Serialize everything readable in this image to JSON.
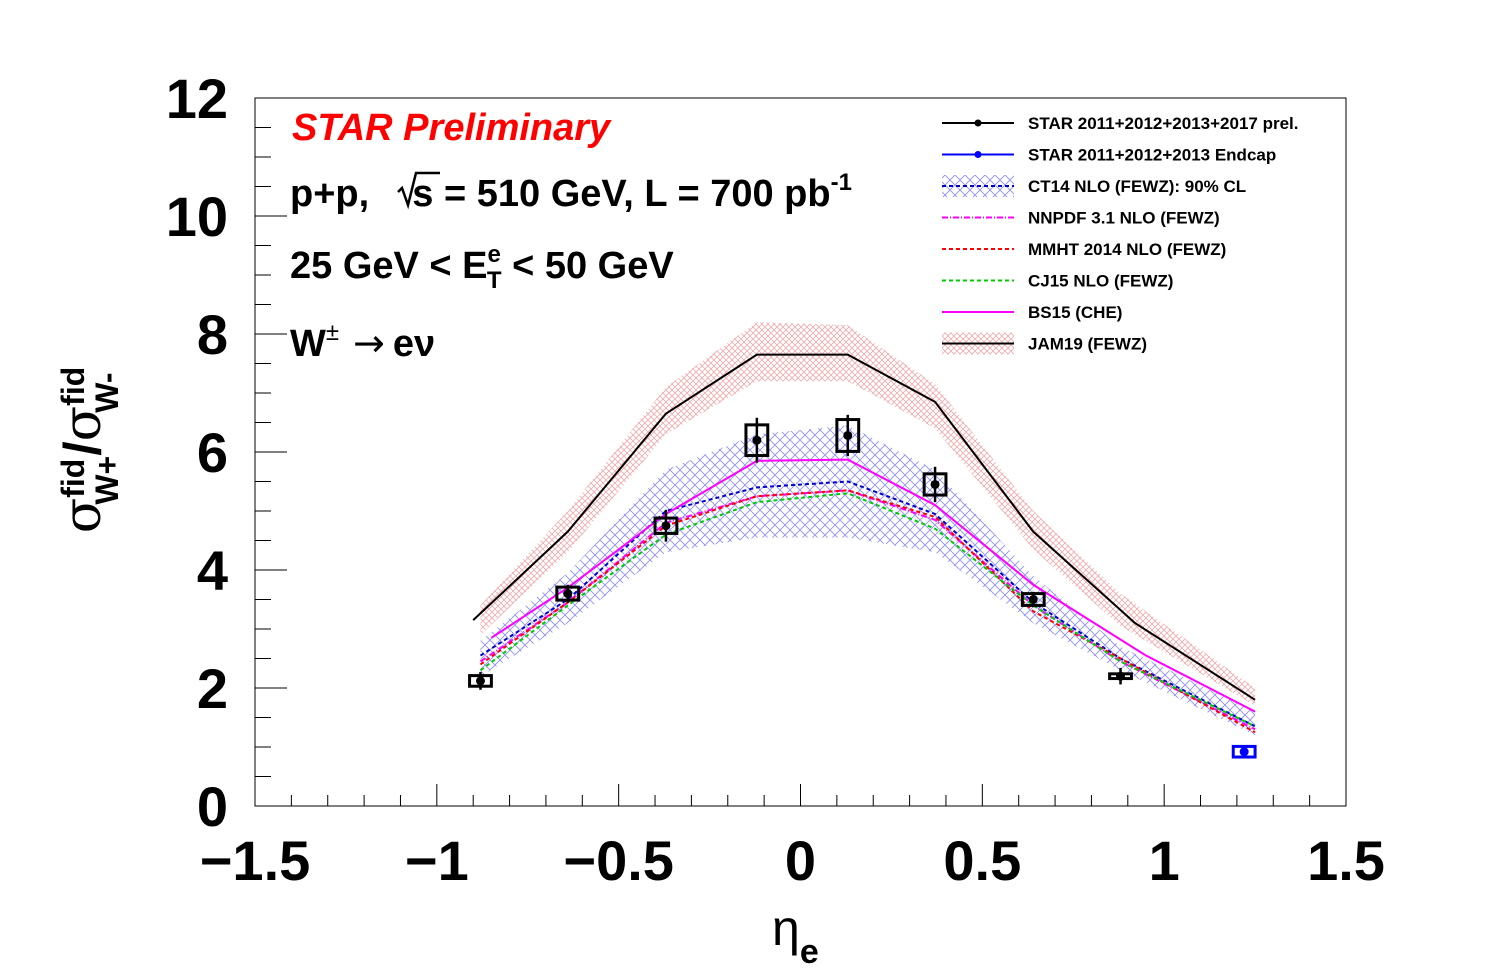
{
  "chart_data": {
    "type": "line",
    "x_axis": {
      "title": "η",
      "title_sub": "e",
      "range": [
        -1.5,
        1.5
      ],
      "ticks": [
        {
          "value": -1.5,
          "label": "−1.5"
        },
        {
          "value": -1,
          "label": "−1"
        },
        {
          "value": -0.5,
          "label": "−0.5"
        },
        {
          "value": 0,
          "label": "0"
        },
        {
          "value": 0.5,
          "label": "0.5"
        },
        {
          "value": 1,
          "label": "1"
        },
        {
          "value": 1.5,
          "label": "1.5"
        }
      ]
    },
    "y_axis": {
      "title_num": "σ",
      "title_num_sup": "fid",
      "title_num_sub": "W+",
      "title_sep": "/",
      "title_den": "σ",
      "title_den_sup": "fid",
      "title_den_sub": "W-",
      "range": [
        0,
        12
      ],
      "ticks": [
        {
          "value": 0,
          "label": "0"
        },
        {
          "value": 2,
          "label": "2"
        },
        {
          "value": 4,
          "label": "4"
        },
        {
          "value": 6,
          "label": "6"
        },
        {
          "value": 8,
          "label": "8"
        },
        {
          "value": 10,
          "label": "10"
        },
        {
          "value": 12,
          "label": "12"
        }
      ]
    },
    "grid": false,
    "legend_position": "top-right",
    "annotations": {
      "preliminary": "STAR Preliminary",
      "collision_pre": "p+p,  ",
      "sqrt_s": "s",
      "collision_post": " = 510 GeV, L = 700 pb",
      "lumi_exp": "-1",
      "et_pre": "25 GeV < E",
      "et_sup": "e",
      "et_sub": "T",
      "et_post": " < 50 GeV",
      "process_w": "W",
      "process_pm": "±",
      "process_arrow": "→",
      "process_final": "eν"
    },
    "data_series": [
      {
        "name": "STAR 2011+2012+2013+2017 prel.",
        "color": "#000000",
        "points": [
          {
            "x": -0.88,
            "y": 2.12,
            "stat": 0.15,
            "sys_half_width": 0.03,
            "sys_half_height": 0.09
          },
          {
            "x": -0.64,
            "y": 3.6,
            "stat": 0.15,
            "sys_half_width": 0.03,
            "sys_half_height": 0.11
          },
          {
            "x": -0.37,
            "y": 4.75,
            "stat": 0.27,
            "sys_half_width": 0.03,
            "sys_half_height": 0.13
          },
          {
            "x": -0.12,
            "y": 6.2,
            "stat": 0.38,
            "sys_half_width": 0.03,
            "sys_half_height": 0.26
          },
          {
            "x": 0.13,
            "y": 6.28,
            "stat": 0.35,
            "sys_half_width": 0.03,
            "sys_half_height": 0.27
          },
          {
            "x": 0.37,
            "y": 5.45,
            "stat": 0.3,
            "sys_half_width": 0.03,
            "sys_half_height": 0.18
          },
          {
            "x": 0.64,
            "y": 3.5,
            "stat": 0.13,
            "sys_half_width": 0.03,
            "sys_half_height": 0.1
          },
          {
            "x": 0.88,
            "y": 2.2,
            "stat": 0.14,
            "sys_half_width": 0.03,
            "sys_half_height": 0.04
          }
        ]
      },
      {
        "name": "STAR 2011+2012+2013 Endcap",
        "color": "#0000ff",
        "points": [
          {
            "x": 1.22,
            "y": 0.92,
            "stat": 0.06,
            "sys_half_width": 0.03,
            "sys_half_height": 0.09
          }
        ]
      }
    ],
    "theory_bands": [
      {
        "name": "CT14 NLO (FEWZ): 90% CL",
        "color": "#6a6aff",
        "x": [
          -0.88,
          -0.64,
          -0.37,
          -0.12,
          0.13,
          0.37,
          0.64,
          0.88,
          1.25
        ],
        "low": [
          2.2,
          3.1,
          4.3,
          4.55,
          4.55,
          4.3,
          3.1,
          2.3,
          1.2
        ],
        "high": [
          2.8,
          3.95,
          5.7,
          6.3,
          6.45,
          5.7,
          3.9,
          2.7,
          1.6
        ]
      },
      {
        "name": "JAM19 (FEWZ)",
        "color": "#e08a8a",
        "x": [
          -0.88,
          -0.64,
          -0.37,
          -0.12,
          0.13,
          0.37,
          0.64,
          0.88,
          1.25
        ],
        "low": [
          2.9,
          4.3,
          6.3,
          7.2,
          7.2,
          6.4,
          4.35,
          3.05,
          1.7
        ],
        "high": [
          3.4,
          5.0,
          7.1,
          8.2,
          8.15,
          7.15,
          5.0,
          3.6,
          2.0
        ]
      }
    ],
    "theory_curves": [
      {
        "name": "CT14 NLO (FEWZ): 90% CL",
        "color": "#0000cc",
        "dash": "4,3",
        "x": [
          -0.88,
          -0.64,
          -0.37,
          -0.12,
          0.13,
          0.37,
          0.64,
          0.88,
          1.25
        ],
        "y": [
          2.55,
          3.5,
          5.0,
          5.4,
          5.5,
          4.95,
          3.45,
          2.5,
          1.35
        ]
      },
      {
        "name": "NNPDF 3.1 NLO (FEWZ)",
        "color": "#ff00ff",
        "dash": "6,2,1,2",
        "x": [
          -0.88,
          -0.64,
          -0.37,
          -0.12,
          0.13,
          0.37,
          0.64,
          0.88,
          1.25
        ],
        "y": [
          2.45,
          3.45,
          4.8,
          5.25,
          5.35,
          4.85,
          3.4,
          2.45,
          1.3
        ]
      },
      {
        "name": "MMHT 2014 NLO (FEWZ)",
        "color": "#ff0000",
        "dash": "4,3",
        "x": [
          -0.88,
          -0.64,
          -0.37,
          -0.12,
          0.13,
          0.37,
          0.64,
          0.88,
          1.25
        ],
        "y": [
          2.4,
          3.45,
          4.75,
          5.25,
          5.35,
          4.9,
          3.3,
          2.5,
          1.25
        ]
      },
      {
        "name": "CJ15 NLO (FEWZ)",
        "color": "#00cc00",
        "dash": "4,3",
        "x": [
          -0.88,
          -0.64,
          -0.37,
          -0.12,
          0.13,
          0.37,
          0.64,
          0.88,
          1.25
        ],
        "y": [
          2.3,
          3.4,
          4.6,
          5.15,
          5.3,
          4.7,
          3.4,
          2.45,
          1.35
        ]
      },
      {
        "name": "BS15 (CHE)",
        "color": "#ff00ff",
        "dash": "",
        "x": [
          -0.85,
          -0.64,
          -0.37,
          -0.12,
          0.13,
          0.37,
          0.64,
          0.95,
          1.25
        ],
        "y": [
          2.85,
          3.7,
          4.95,
          5.85,
          5.87,
          5.1,
          3.75,
          2.55,
          1.6
        ]
      },
      {
        "name": "JAM19 (FEWZ)",
        "color": "#000000",
        "dash": "",
        "x": [
          -0.9,
          -0.64,
          -0.37,
          -0.12,
          0.13,
          0.37,
          0.64,
          0.92,
          1.25
        ],
        "y": [
          3.15,
          4.65,
          6.65,
          7.65,
          7.65,
          6.85,
          4.65,
          3.1,
          1.8
        ]
      }
    ],
    "legend": [
      {
        "label": "STAR 2011+2012+2013+2017 prel.",
        "style": "marker",
        "color": "#000000"
      },
      {
        "label": "STAR 2011+2012+2013 Endcap",
        "style": "marker",
        "color": "#0000ff"
      },
      {
        "label": "CT14 NLO (FEWZ): 90% CL",
        "style": "band-dash",
        "color": "#0000cc",
        "fill": "#6a6aff",
        "dash": "4,3"
      },
      {
        "label": "NNPDF 3.1 NLO (FEWZ)",
        "style": "line",
        "color": "#ff00ff",
        "dash": "6,2,1,2"
      },
      {
        "label": "MMHT 2014 NLO (FEWZ)",
        "style": "line",
        "color": "#ff0000",
        "dash": "4,3"
      },
      {
        "label": "CJ15 NLO (FEWZ)",
        "style": "line",
        "color": "#00cc00",
        "dash": "4,3"
      },
      {
        "label": "BS15 (CHE)",
        "style": "line",
        "color": "#ff00ff",
        "dash": ""
      },
      {
        "label": "JAM19 (FEWZ)",
        "style": "band-line",
        "color": "#000000",
        "fill": "#e08a8a",
        "dash": ""
      }
    ]
  }
}
